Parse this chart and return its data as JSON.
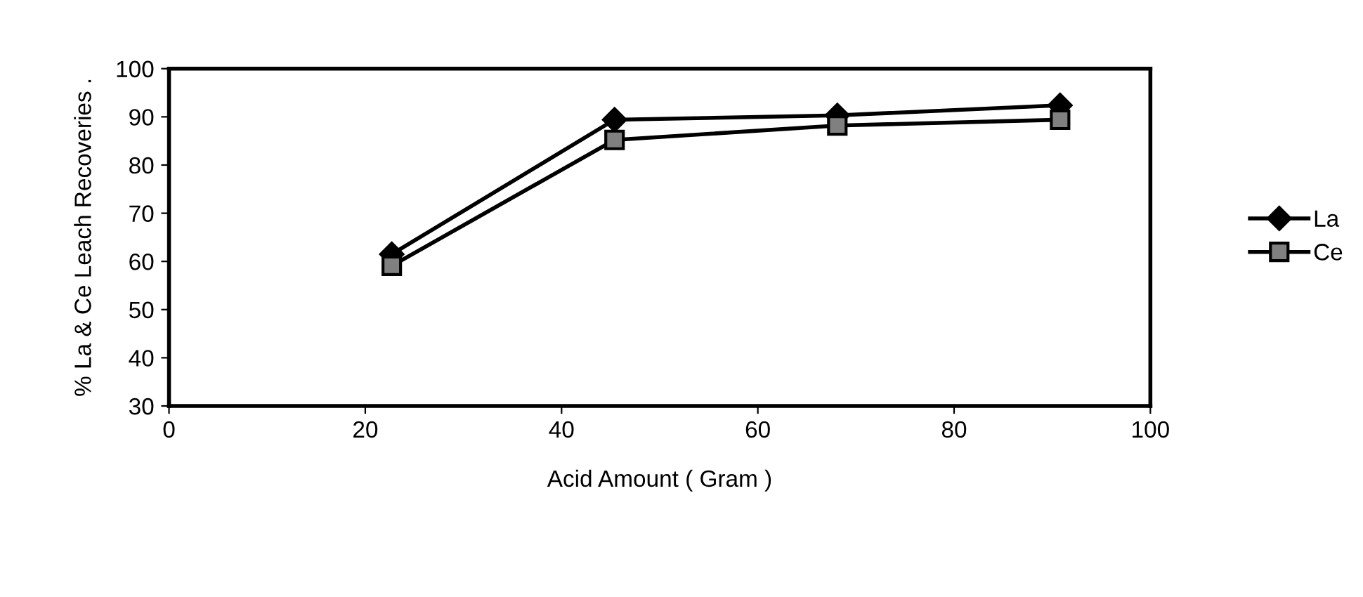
{
  "chart_data": {
    "type": "line",
    "xlabel": "Acid Amount ( Gram )",
    "ylabel": "% La & Ce Leach Recoveries .",
    "xlim": [
      0,
      100
    ],
    "xticks": [
      0,
      20,
      40,
      60,
      80,
      100
    ],
    "ylim": [
      30,
      100
    ],
    "yticks": [
      30,
      40,
      50,
      60,
      70,
      80,
      90,
      100
    ],
    "grid": false,
    "legend": "right",
    "line_style": "solid",
    "series": [
      {
        "name": "La",
        "color": "#000000",
        "marker": "diamond",
        "x": [
          22.7,
          45.4,
          68.1,
          90.8
        ],
        "values": [
          61.5,
          89.4,
          90.3,
          92.4
        ]
      },
      {
        "name": "Ce",
        "color": "#000000",
        "marker": "square",
        "x": [
          22.7,
          45.4,
          68.1,
          90.8
        ],
        "values": [
          59.1,
          85.2,
          88.2,
          89.4
        ]
      }
    ]
  }
}
